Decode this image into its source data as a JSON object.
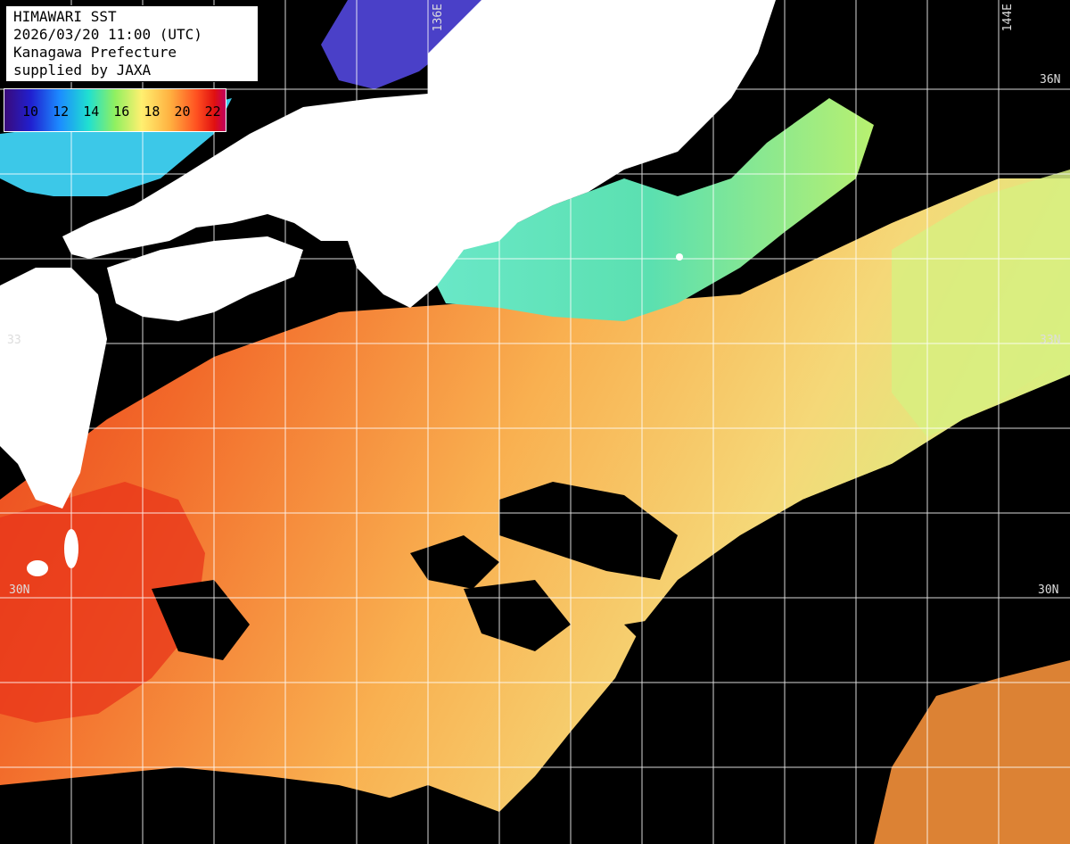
{
  "title": {
    "line1": "HIMAWARI SST",
    "line2": "2026/03/20 11:00 (UTC)",
    "line3": "Kanagawa Prefecture",
    "line4": "supplied by JAXA"
  },
  "legend": {
    "ticks": [
      "10",
      "12",
      "14",
      "16",
      "18",
      "20",
      "22"
    ],
    "colors": [
      "#3a0a7a",
      "#2020d0",
      "#1c8cff",
      "#20e0d0",
      "#90f060",
      "#fff070",
      "#ffb040",
      "#ff5020",
      "#e01010",
      "#c00060"
    ]
  },
  "grid_labels": {
    "lon_136": "136E",
    "lon_144": "144E",
    "lat_36": "36N",
    "lat_33_left": "33",
    "lat_33_right": "33N",
    "lat_30_left": "30N",
    "lat_30_right": "30N"
  },
  "colors": {
    "land": "#ffffff",
    "cloud": "#000000",
    "grid": "#ffffff",
    "sst_cold": "#4ad6b8",
    "sst_cool": "#b8f070",
    "sst_mild": "#f8d870",
    "sst_warm": "#f8a040",
    "sst_hot": "#f05020"
  }
}
